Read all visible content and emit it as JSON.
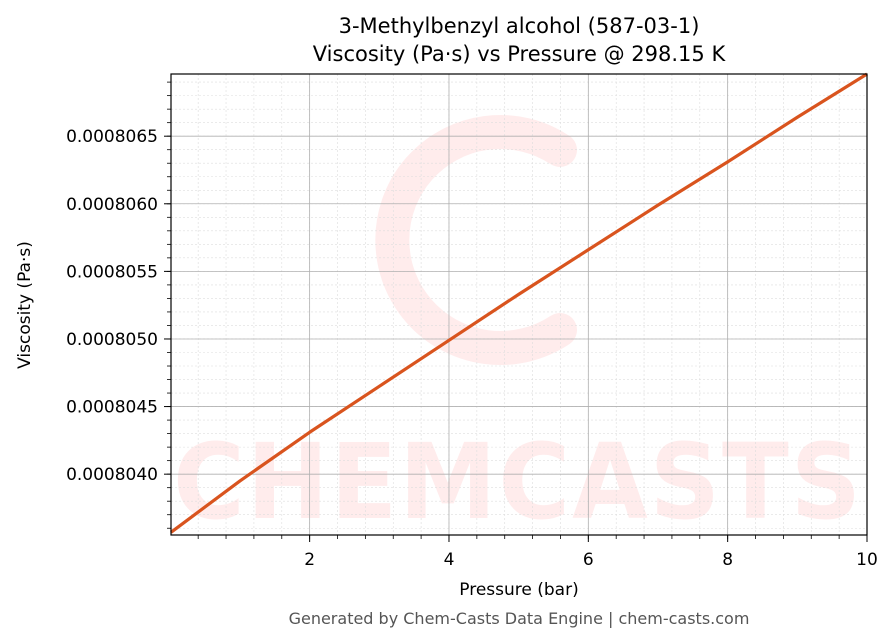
{
  "chart_data": {
    "type": "line",
    "title": "3-Methylbenzyl alcohol (587-03-1)",
    "subtitle": "Viscosity (Pa·s) vs Pressure @ 298.15 K",
    "xlabel": "Pressure (bar)",
    "ylabel": "Viscosity (Pa·s)",
    "xlim": [
      0.01,
      10
    ],
    "ylim": [
      0.00080355,
      0.00080696
    ],
    "x_ticks": [
      2,
      4,
      6,
      8,
      10
    ],
    "x_tick_labels": [
      "2",
      "4",
      "6",
      "8",
      "10"
    ],
    "y_ticks": [
      0.000804,
      0.0008045,
      0.000805,
      0.0008055,
      0.000806,
      0.0008065
    ],
    "y_tick_labels": [
      "0.0008040",
      "0.0008045",
      "0.0008050",
      "0.0008055",
      "0.0008060",
      "0.0008065"
    ],
    "grid": true,
    "line_color": "#d9541e",
    "series": [
      {
        "x": [
          0.01,
          1,
          2,
          3,
          4,
          5,
          6,
          7,
          8,
          9,
          10
        ],
        "y": [
          0.00080357,
          0.00080395,
          0.00080431,
          0.00080465,
          0.00080499,
          0.00080533,
          0.00080566,
          0.00080599,
          0.00080631,
          0.00080664,
          0.00080696
        ]
      }
    ]
  },
  "watermark": {
    "text": "CHEMCASTS",
    "color": "#ff6b6b"
  },
  "footer": "Generated by Chem-Casts Data Engine | chem-casts.com"
}
